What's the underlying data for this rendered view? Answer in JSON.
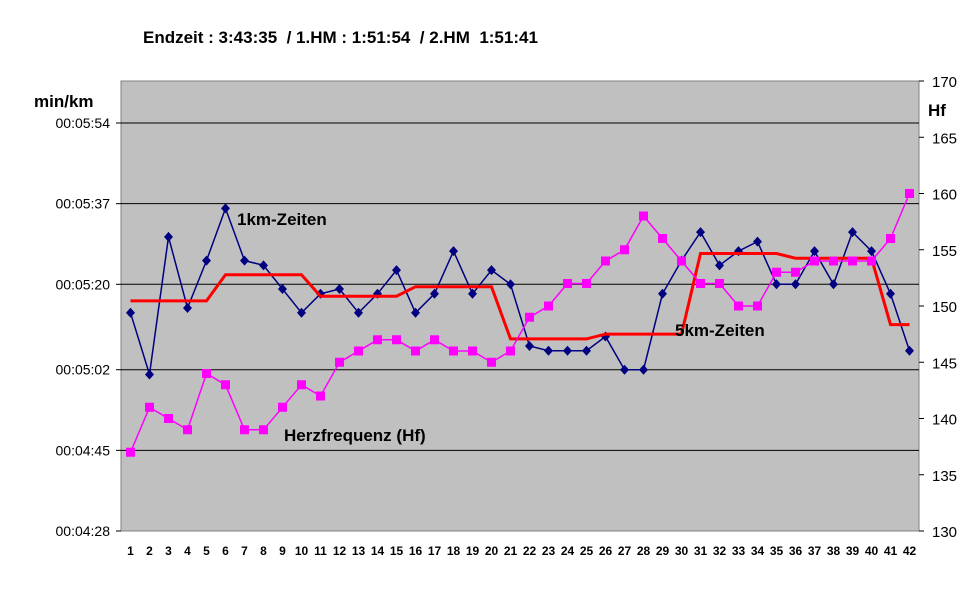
{
  "chart_data": {
    "type": "line",
    "title": "Endzeit : 3:43:35  / 1.HM : 1:51:54  / 2.HM  1:51:41",
    "y_left_label": "min/km",
    "y_right_label": "Hf",
    "y_left_ticks": [
      "00:04:28",
      "00:04:45",
      "00:05:02",
      "00:05:20",
      "00:05:37",
      "00:05:54"
    ],
    "y_left_range_seconds": [
      268,
      354
    ],
    "y_left_tick_seconds": [
      268,
      285,
      302,
      320,
      337,
      354
    ],
    "y_right_ticks": [
      "130",
      "135",
      "140",
      "145",
      "150",
      "155",
      "160",
      "165",
      "170"
    ],
    "y_right_range": [
      130,
      170
    ],
    "x": [
      "1",
      "2",
      "3",
      "4",
      "5",
      "6",
      "7",
      "8",
      "9",
      "10",
      "11",
      "12",
      "13",
      "14",
      "15",
      "16",
      "17",
      "18",
      "19",
      "20",
      "21",
      "22",
      "23",
      "24",
      "25",
      "26",
      "27",
      "28",
      "29",
      "30",
      "31",
      "32",
      "33",
      "34",
      "35",
      "36",
      "37",
      "38",
      "39",
      "40",
      "41",
      "42"
    ],
    "grid": "horizontal",
    "background": "#c0c0c0",
    "series": [
      {
        "name": "1km-Zeiten",
        "axis": "left",
        "color": "#000080",
        "marker": "diamond",
        "values_seconds": [
          314,
          301,
          330,
          315,
          325,
          336,
          325,
          324,
          319,
          314,
          318,
          319,
          314,
          318,
          323,
          314,
          318,
          327,
          318,
          323,
          320,
          307,
          306,
          306,
          306,
          309,
          302,
          302,
          318,
          325,
          331,
          324,
          327,
          329,
          320,
          320,
          327,
          320,
          331,
          327,
          318,
          306
        ]
      },
      {
        "name": "5km-Zeiten",
        "axis": "left",
        "color": "#ff0000",
        "marker": "none",
        "values_seconds": [
          316.5,
          316.5,
          316.5,
          316.5,
          316.5,
          322,
          322,
          322,
          322,
          322,
          317.5,
          317.5,
          317.5,
          317.5,
          317.5,
          319.5,
          319.5,
          319.5,
          319.5,
          319.5,
          308.5,
          308.5,
          308.5,
          308.5,
          308.5,
          309.5,
          309.5,
          309.5,
          309.5,
          309.5,
          326.5,
          326.5,
          326.5,
          326.5,
          326.5,
          325.5,
          325.5,
          325.5,
          325.5,
          325.5,
          311.5,
          311.5
        ]
      },
      {
        "name": "Herzfrequenz (Hf)",
        "axis": "right",
        "color": "#ff00ff",
        "marker": "square",
        "values": [
          137,
          141,
          140,
          139,
          144,
          143,
          139,
          139,
          141,
          143,
          142,
          145,
          146,
          147,
          147,
          146,
          147,
          146,
          146,
          145,
          146,
          149,
          150,
          152,
          152,
          154,
          155,
          158,
          156,
          154,
          152,
          152,
          150,
          150,
          153,
          153,
          154,
          154,
          154,
          154,
          156,
          160
        ]
      }
    ],
    "annotations": [
      "1km-Zeiten",
      "5km-Zeiten",
      "Herzfrequenz (Hf)"
    ]
  }
}
